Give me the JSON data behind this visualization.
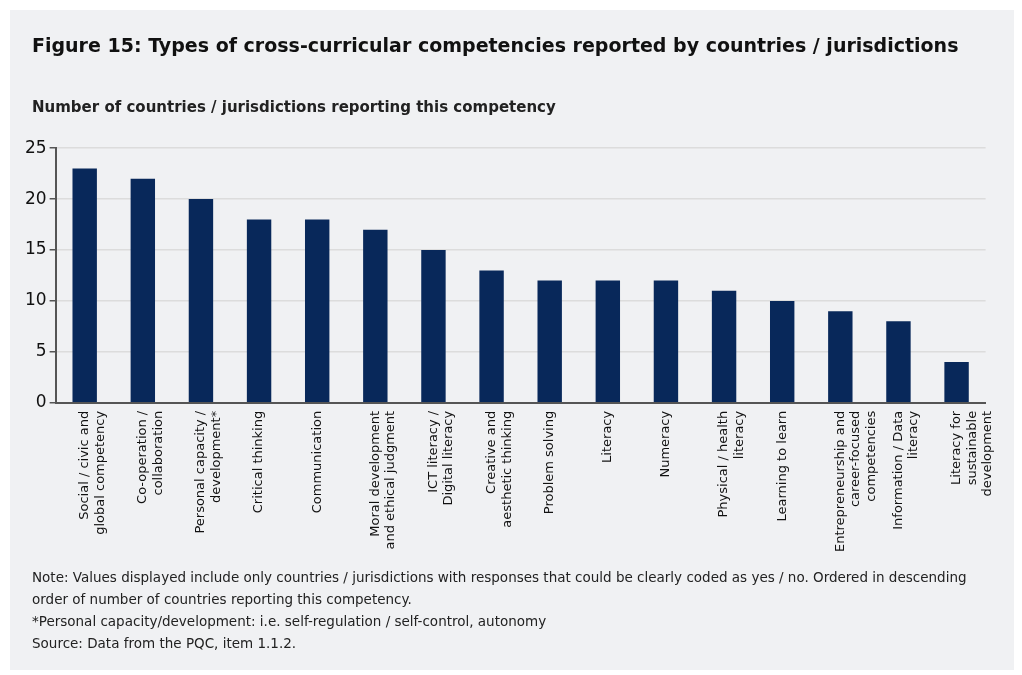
{
  "chart_data": {
    "type": "bar",
    "title": "Figure 15: Types of cross-curricular competencies reported by countries / jurisdictions",
    "ylabel": "Number of countries / jurisdictions reporting this competency",
    "categories": [
      "Social / civic and global competency",
      "Co-operation / collaboration",
      "Personal capacity / development*",
      "Critical thinking",
      "Communication",
      "Moral development and ethical judgment",
      "ICT literacy / Digital literacy",
      "Creative and aesthetic thinking",
      "Problem solving",
      "Literacy",
      "Numeracy",
      "Physical / health literacy",
      "Learning to learn",
      "Entrepreneurship and career-focused competencies",
      "Information / Data literacy",
      "Literacy for sustainable development"
    ],
    "values": [
      23,
      22,
      20,
      18,
      18,
      17,
      15,
      13,
      12,
      12,
      12,
      11,
      10,
      9,
      8,
      4
    ],
    "color": "#08285a",
    "ylim": [
      0,
      25
    ],
    "yticks": [
      0,
      5,
      10,
      15,
      20,
      25
    ],
    "grid": "y",
    "legend": false,
    "annotations": [
      "Note: Values displayed include only countries / jurisdictions with responses that could be clearly coded as yes / no. Ordered in descending order of number of countries reporting this competency.",
      "*Personal capacity/development: i.e. self-regulation / self-control, autonomy",
      "Source: Data from the PQC, item 1.1.2."
    ]
  }
}
